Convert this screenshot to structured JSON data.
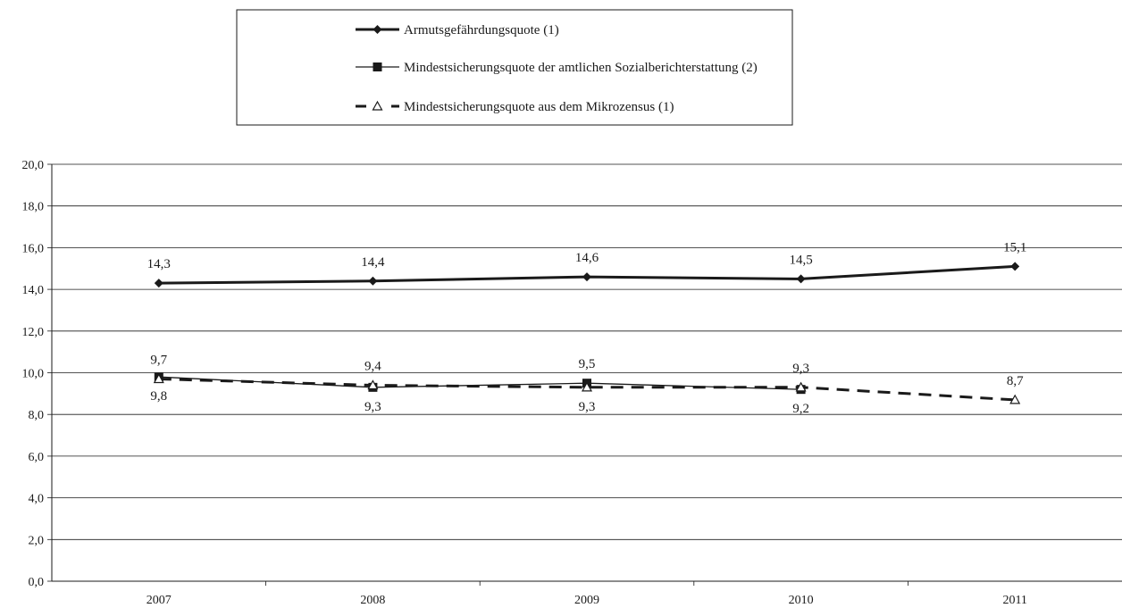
{
  "chart_data": {
    "type": "line",
    "categories": [
      "2007",
      "2008",
      "2009",
      "2010",
      "2011"
    ],
    "ylim": [
      0,
      20
    ],
    "yticks": [
      "0,0",
      "2,0",
      "4,0",
      "6,0",
      "8,0",
      "10,0",
      "12,0",
      "14,0",
      "16,0",
      "18,0",
      "20,0"
    ],
    "grid": true,
    "legend_position": "top-center",
    "series": [
      {
        "name": "Armutsgefährdungsquote (1)",
        "values": [
          14.3,
          14.4,
          14.6,
          14.5,
          15.1
        ],
        "labels": [
          "14,3",
          "14,4",
          "14,6",
          "14,5",
          "15,1"
        ],
        "marker": "diamond",
        "line": "solid-thick",
        "color": "#1a1a1a"
      },
      {
        "name": "Mindestsicherungsquote der amtlichen Sozialberichterstattung (2)",
        "values": [
          9.8,
          9.3,
          9.5,
          9.2,
          null
        ],
        "labels": [
          "9,8",
          "9,3",
          "9,5",
          "9,2",
          null
        ],
        "marker": "square",
        "line": "solid-thin",
        "color": "#1a1a1a"
      },
      {
        "name": "Mindestsicherungsquote aus dem Mikrozensus (1)",
        "values": [
          9.7,
          9.4,
          9.3,
          9.3,
          8.7
        ],
        "labels": [
          "9,7",
          "9,4",
          "9,3",
          "9,3",
          "8,7"
        ],
        "marker": "triangle-open",
        "line": "dashed",
        "color": "#1a1a1a"
      }
    ]
  }
}
